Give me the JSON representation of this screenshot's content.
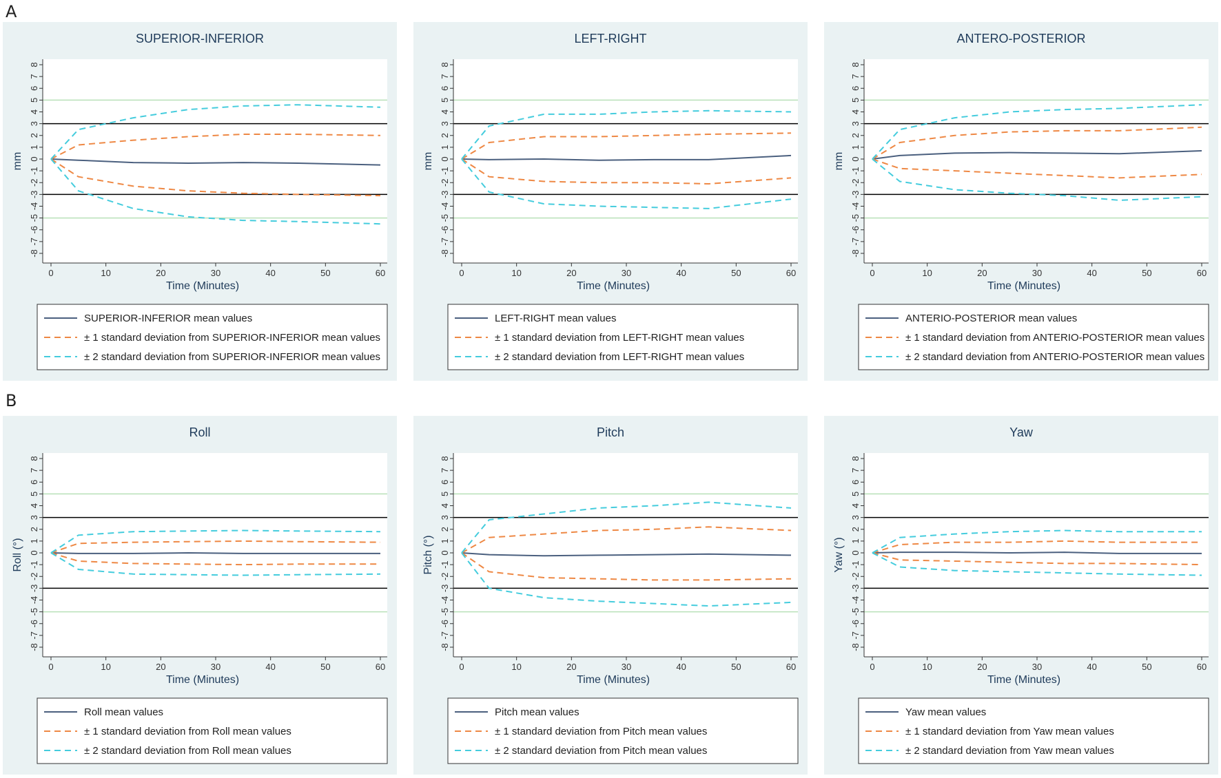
{
  "panel_labels": [
    "A",
    "B"
  ],
  "colors": {
    "mean": "#4a5f7e",
    "sd1": "#ee8844",
    "sd2": "#44ccdd",
    "threshold_black": "#000000",
    "threshold_green": "#b8e0b8",
    "panel_bg": "#eaf2f3"
  },
  "chart_data": [
    {
      "type": "line",
      "title": "SUPERIOR-INFERIOR",
      "xlabel": "Time (Minutes)",
      "ylabel": "mm",
      "xlim": [
        0,
        60
      ],
      "ylim": [
        -8,
        8
      ],
      "xticks": [
        0,
        10,
        20,
        30,
        40,
        50,
        60
      ],
      "yticks": [
        -8,
        -7,
        -6,
        -5,
        -4,
        -3,
        -2,
        -1,
        0,
        1,
        2,
        3,
        4,
        5,
        6,
        7,
        8
      ],
      "reference_lines": [
        {
          "y": 3,
          "color": "black"
        },
        {
          "y": -3,
          "color": "black"
        },
        {
          "y": 5,
          "color": "green"
        },
        {
          "y": -5,
          "color": "green"
        }
      ],
      "x": [
        0,
        5,
        15,
        25,
        35,
        45,
        60
      ],
      "series": [
        {
          "name": "SUPERIOR-INFERIOR mean values",
          "style": "mean",
          "values": [
            0,
            -0.1,
            -0.3,
            -0.35,
            -0.3,
            -0.35,
            -0.5
          ]
        },
        {
          "name": "± 1 standard deviation from SUPERIOR-INFERIOR mean values",
          "style": "sd1",
          "values": [
            0,
            1.2,
            1.6,
            1.9,
            2.1,
            2.1,
            2.0
          ]
        },
        {
          "name": "± 1 standard deviation from SUPERIOR-INFERIOR mean values",
          "style": "sd1",
          "legend": false,
          "values": [
            0,
            -1.5,
            -2.3,
            -2.7,
            -2.9,
            -3.0,
            -3.1
          ]
        },
        {
          "name": "± 2 standard deviation from SUPERIOR-INFERIOR mean values",
          "style": "sd2",
          "values": [
            0,
            2.5,
            3.5,
            4.2,
            4.5,
            4.6,
            4.4
          ]
        },
        {
          "name": "± 2 standard deviation from SUPERIOR-INFERIOR mean values",
          "style": "sd2",
          "legend": false,
          "values": [
            0,
            -2.7,
            -4.2,
            -4.9,
            -5.2,
            -5.3,
            -5.5
          ]
        }
      ],
      "legend": [
        "SUPERIOR-INFERIOR mean values",
        "± 1 standard deviation from SUPERIOR-INFERIOR mean values",
        "± 2 standard deviation from SUPERIOR-INFERIOR mean values"
      ]
    },
    {
      "type": "line",
      "title": "LEFT-RIGHT",
      "xlabel": "Time (Minutes)",
      "ylabel": "mm",
      "xlim": [
        0,
        60
      ],
      "ylim": [
        -8,
        8
      ],
      "xticks": [
        0,
        10,
        20,
        30,
        40,
        50,
        60
      ],
      "yticks": [
        -8,
        -7,
        -6,
        -5,
        -4,
        -3,
        -2,
        -1,
        0,
        1,
        2,
        3,
        4,
        5,
        6,
        7,
        8
      ],
      "reference_lines": [
        {
          "y": 3,
          "color": "black"
        },
        {
          "y": -3,
          "color": "black"
        },
        {
          "y": 5,
          "color": "green"
        },
        {
          "y": -5,
          "color": "green"
        }
      ],
      "x": [
        0,
        5,
        15,
        25,
        35,
        45,
        60
      ],
      "series": [
        {
          "name": "LEFT-RIGHT mean values",
          "style": "mean",
          "values": [
            0,
            -0.05,
            0.0,
            -0.1,
            -0.05,
            -0.05,
            0.3
          ]
        },
        {
          "name": "± 1 standard deviation from LEFT-RIGHT mean values",
          "style": "sd1",
          "values": [
            0,
            1.4,
            1.9,
            1.9,
            2.0,
            2.1,
            2.2
          ]
        },
        {
          "name": "± 1 standard deviation from LEFT-RIGHT mean values",
          "style": "sd1",
          "legend": false,
          "values": [
            0,
            -1.5,
            -1.9,
            -2.0,
            -2.0,
            -2.1,
            -1.6
          ]
        },
        {
          "name": "± 2 standard deviation from LEFT-RIGHT mean values",
          "style": "sd2",
          "values": [
            0,
            2.8,
            3.8,
            3.8,
            4.0,
            4.1,
            4.0
          ]
        },
        {
          "name": "± 2 standard deviation from LEFT-RIGHT mean values",
          "style": "sd2",
          "legend": false,
          "values": [
            0,
            -2.8,
            -3.8,
            -4.0,
            -4.1,
            -4.2,
            -3.4
          ]
        }
      ],
      "legend": [
        "LEFT-RIGHT mean values",
        "± 1 standard deviation from LEFT-RIGHT mean values",
        "± 2 standard deviation from LEFT-RIGHT mean values"
      ]
    },
    {
      "type": "line",
      "title": "ANTERO-POSTERIOR",
      "xlabel": "Time (Minutes)",
      "ylabel": "mm",
      "xlim": [
        0,
        60
      ],
      "ylim": [
        -8,
        8
      ],
      "xticks": [
        0,
        10,
        20,
        30,
        40,
        50,
        60
      ],
      "yticks": [
        -8,
        -7,
        -6,
        -5,
        -4,
        -3,
        -2,
        -1,
        0,
        1,
        2,
        3,
        4,
        5,
        6,
        7,
        8
      ],
      "reference_lines": [
        {
          "y": 3,
          "color": "black"
        },
        {
          "y": -3,
          "color": "black"
        },
        {
          "y": 5,
          "color": "green"
        },
        {
          "y": -5,
          "color": "green"
        }
      ],
      "x": [
        0,
        5,
        15,
        25,
        35,
        45,
        60
      ],
      "series": [
        {
          "name": "ANTERIO-POSTERIOR mean values",
          "style": "mean",
          "values": [
            0,
            0.3,
            0.5,
            0.55,
            0.5,
            0.45,
            0.7
          ]
        },
        {
          "name": "± 1 standard deviation from ANTERIO-POSTERIOR mean values",
          "style": "sd1",
          "values": [
            0,
            1.4,
            2.0,
            2.3,
            2.4,
            2.4,
            2.7
          ]
        },
        {
          "name": "± 1 standard deviation from ANTERIO-POSTERIOR mean values",
          "style": "sd1",
          "legend": false,
          "values": [
            0,
            -0.8,
            -1.0,
            -1.2,
            -1.4,
            -1.6,
            -1.3
          ]
        },
        {
          "name": "± 2 standard deviation from ANTERIO-POSTERIOR mean values",
          "style": "sd2",
          "values": [
            0,
            2.5,
            3.5,
            4.0,
            4.2,
            4.3,
            4.6
          ]
        },
        {
          "name": "± 2 standard deviation from ANTERIO-POSTERIOR mean values",
          "style": "sd2",
          "legend": false,
          "values": [
            0,
            -1.9,
            -2.6,
            -2.9,
            -3.1,
            -3.5,
            -3.2
          ]
        }
      ],
      "legend": [
        "ANTERIO-POSTERIOR mean values",
        "± 1 standard deviation from ANTERIO-POSTERIOR mean values",
        "± 2 standard deviation from ANTERIO-POSTERIOR mean values"
      ]
    },
    {
      "type": "line",
      "title": "Roll",
      "xlabel": "Time (Minutes)",
      "ylabel": "Roll (°)",
      "xlim": [
        0,
        60
      ],
      "ylim": [
        -8,
        8
      ],
      "xticks": [
        0,
        10,
        20,
        30,
        40,
        50,
        60
      ],
      "yticks": [
        -8,
        -7,
        -6,
        -5,
        -4,
        -3,
        -2,
        -1,
        0,
        1,
        2,
        3,
        4,
        5,
        6,
        7,
        8
      ],
      "reference_lines": [
        {
          "y": 3,
          "color": "black"
        },
        {
          "y": -3,
          "color": "black"
        },
        {
          "y": 5,
          "color": "green"
        },
        {
          "y": -5,
          "color": "green"
        }
      ],
      "x": [
        0,
        5,
        15,
        25,
        35,
        45,
        60
      ],
      "series": [
        {
          "name": "Roll mean values",
          "style": "mean",
          "values": [
            0,
            -0.05,
            -0.05,
            0.0,
            -0.05,
            -0.05,
            -0.05
          ]
        },
        {
          "name": "± 1 standard deviation from Roll mean values",
          "style": "sd1",
          "values": [
            0,
            0.8,
            0.9,
            0.95,
            1.0,
            0.95,
            0.9
          ]
        },
        {
          "name": "± 1 standard deviation from Roll mean values",
          "style": "sd1",
          "legend": false,
          "values": [
            0,
            -0.7,
            -0.9,
            -0.95,
            -1.0,
            -0.95,
            -0.95
          ]
        },
        {
          "name": "± 2 standard deviation from Roll mean values",
          "style": "sd2",
          "values": [
            0,
            1.5,
            1.8,
            1.85,
            1.9,
            1.85,
            1.8
          ]
        },
        {
          "name": "± 2 standard deviation from Roll mean values",
          "style": "sd2",
          "legend": false,
          "values": [
            0,
            -1.4,
            -1.8,
            -1.85,
            -1.9,
            -1.85,
            -1.8
          ]
        }
      ],
      "legend": [
        "Roll mean values",
        "± 1 standard deviation from Roll mean values",
        "± 2 standard deviation from Roll mean values"
      ]
    },
    {
      "type": "line",
      "title": "Pitch",
      "xlabel": "Time (Minutes)",
      "ylabel": "Pitch (°)",
      "xlim": [
        0,
        60
      ],
      "ylim": [
        -8,
        8
      ],
      "xticks": [
        0,
        10,
        20,
        30,
        40,
        50,
        60
      ],
      "yticks": [
        -8,
        -7,
        -6,
        -5,
        -4,
        -3,
        -2,
        -1,
        0,
        1,
        2,
        3,
        4,
        5,
        6,
        7,
        8
      ],
      "reference_lines": [
        {
          "y": 3,
          "color": "black"
        },
        {
          "y": -3,
          "color": "black"
        },
        {
          "y": 5,
          "color": "green"
        },
        {
          "y": -5,
          "color": "green"
        }
      ],
      "x": [
        0,
        5,
        15,
        25,
        35,
        45,
        60
      ],
      "series": [
        {
          "name": "Pitch mean values",
          "style": "mean",
          "values": [
            0,
            -0.15,
            -0.25,
            -0.2,
            -0.15,
            -0.1,
            -0.2
          ]
        },
        {
          "name": "± 1 standard deviation from Pitch mean values",
          "style": "sd1",
          "values": [
            0,
            1.3,
            1.6,
            1.9,
            2.0,
            2.2,
            1.9
          ]
        },
        {
          "name": "± 1 standard deviation from Pitch mean values",
          "style": "sd1",
          "legend": false,
          "values": [
            0,
            -1.6,
            -2.1,
            -2.2,
            -2.3,
            -2.3,
            -2.2
          ]
        },
        {
          "name": "± 2 standard deviation from Pitch mean values",
          "style": "sd2",
          "values": [
            0,
            2.8,
            3.3,
            3.8,
            4.0,
            4.3,
            3.8
          ]
        },
        {
          "name": "± 2 standard deviation from Pitch mean values",
          "style": "sd2",
          "legend": false,
          "values": [
            0,
            -3.0,
            -3.8,
            -4.1,
            -4.3,
            -4.5,
            -4.2
          ]
        }
      ],
      "legend": [
        "Pitch mean values",
        "± 1 standard deviation from Pitch mean values",
        "± 2 standard deviation from Pitch mean values"
      ]
    },
    {
      "type": "line",
      "title": "Yaw",
      "xlabel": "Time (Minutes)",
      "ylabel": "Yaw (°)",
      "xlim": [
        0,
        60
      ],
      "ylim": [
        -8,
        8
      ],
      "xticks": [
        0,
        10,
        20,
        30,
        40,
        50,
        60
      ],
      "yticks": [
        -8,
        -7,
        -6,
        -5,
        -4,
        -3,
        -2,
        -1,
        0,
        1,
        2,
        3,
        4,
        5,
        6,
        7,
        8
      ],
      "reference_lines": [
        {
          "y": 3,
          "color": "black"
        },
        {
          "y": -3,
          "color": "black"
        },
        {
          "y": 5,
          "color": "green"
        },
        {
          "y": -5,
          "color": "green"
        }
      ],
      "x": [
        0,
        5,
        15,
        25,
        35,
        45,
        60
      ],
      "series": [
        {
          "name": "Yaw mean values",
          "style": "mean",
          "values": [
            0,
            0.05,
            0.05,
            0.0,
            0.05,
            -0.05,
            -0.05
          ]
        },
        {
          "name": "± 1 standard deviation from Yaw mean values",
          "style": "sd1",
          "values": [
            0,
            0.7,
            0.9,
            0.9,
            1.0,
            0.9,
            0.9
          ]
        },
        {
          "name": "± 1 standard deviation from Yaw mean values",
          "style": "sd1",
          "legend": false,
          "values": [
            0,
            -0.6,
            -0.7,
            -0.8,
            -0.9,
            -0.9,
            -1.0
          ]
        },
        {
          "name": "± 2 standard deviation from Yaw mean values",
          "style": "sd2",
          "values": [
            0,
            1.3,
            1.6,
            1.8,
            1.9,
            1.8,
            1.8
          ]
        },
        {
          "name": "± 2 standard deviation from Yaw mean values",
          "style": "sd2",
          "legend": false,
          "values": [
            0,
            -1.2,
            -1.5,
            -1.6,
            -1.7,
            -1.8,
            -1.9
          ]
        }
      ],
      "legend": [
        "Yaw mean values",
        "± 1 standard deviation from Yaw mean values",
        "± 2 standard deviation from Yaw mean values"
      ]
    }
  ]
}
